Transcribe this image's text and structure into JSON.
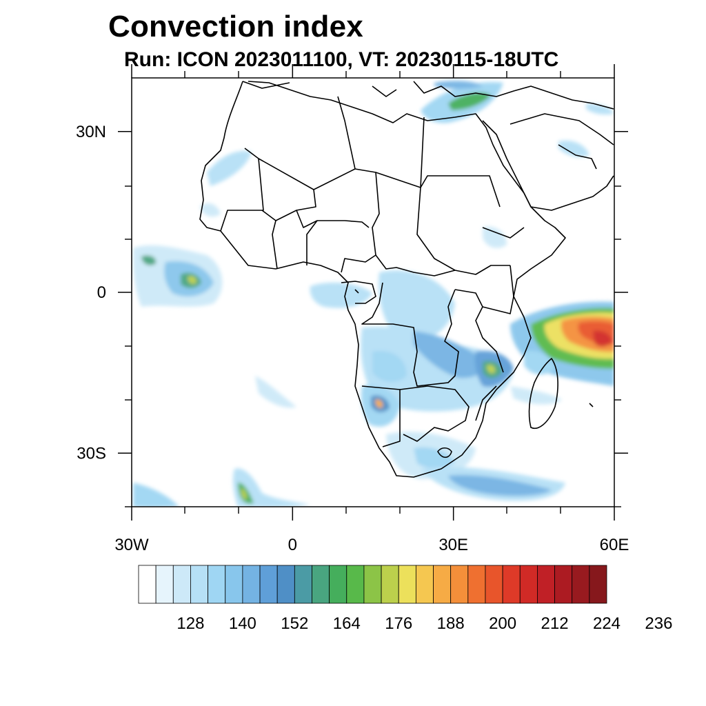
{
  "title": "Convection index",
  "subtitle": "Run: ICON 2023011100,  VT: 20230115-18UTC",
  "map": {
    "region": "Africa",
    "lon_range": [
      -30,
      60
    ],
    "lat_range": [
      -40,
      40
    ],
    "x_ticks": [
      {
        "lon": -30,
        "label": "30W"
      },
      {
        "lon": 0,
        "label": "0"
      },
      {
        "lon": 30,
        "label": "30E"
      },
      {
        "lon": 60,
        "label": "60E"
      }
    ],
    "y_ticks": [
      {
        "lat": 30,
        "label": "30N"
      },
      {
        "lat": 0,
        "label": "0"
      },
      {
        "lat": -30,
        "label": "30S"
      }
    ]
  },
  "colorbar": {
    "colors": [
      "#ffffff",
      "#e6f4fc",
      "#cde9f8",
      "#b6e0f6",
      "#9fd6f3",
      "#88c6ec",
      "#74b3e3",
      "#5f9fd8",
      "#4f8fc6",
      "#4b9ba5",
      "#49a580",
      "#45ae5c",
      "#58b94a",
      "#8cc447",
      "#bcd04c",
      "#ece05b",
      "#f5c750",
      "#f6ab45",
      "#f48f3a",
      "#ef7030",
      "#e8552b",
      "#de3a28",
      "#d12a26",
      "#c02026",
      "#ac1b22",
      "#981a1f",
      "#86181c"
    ],
    "labels": [
      "128",
      "140",
      "152",
      "164",
      "176",
      "188",
      "200",
      "212",
      "224",
      "236"
    ]
  }
}
